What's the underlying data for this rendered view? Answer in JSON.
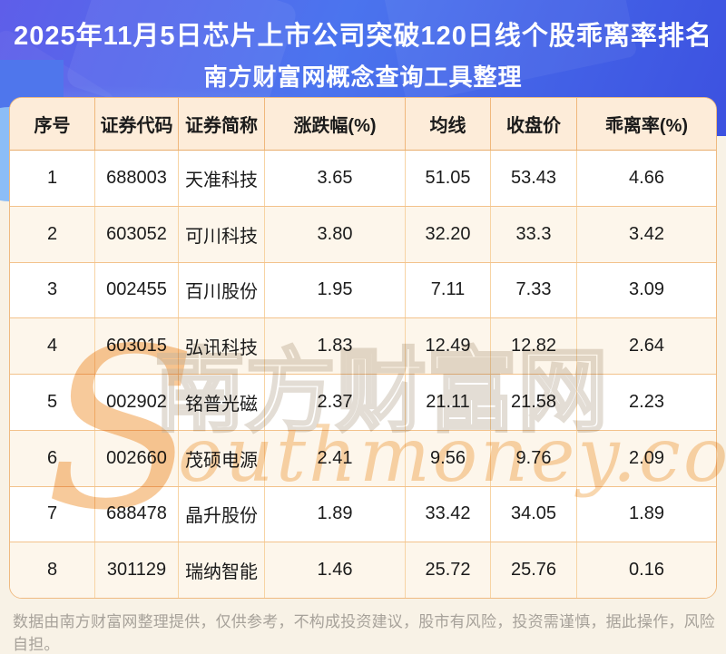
{
  "title": {
    "line1": "2025年11月5日芯片上市公司突破120日线个股乖离率排名",
    "line2": "南方财富网概念查询工具整理"
  },
  "table": {
    "headers": [
      "序号",
      "证券代码",
      "证券简称",
      "涨跌幅(%)",
      "均线",
      "收盘价",
      "乖离率(%)"
    ],
    "rows": [
      [
        "1",
        "688003",
        "天准科技",
        "3.65",
        "51.05",
        "53.43",
        "4.66"
      ],
      [
        "2",
        "603052",
        "可川科技",
        "3.80",
        "32.20",
        "33.3",
        "3.42"
      ],
      [
        "3",
        "002455",
        "百川股份",
        "1.95",
        "7.11",
        "7.33",
        "3.09"
      ],
      [
        "4",
        "603015",
        "弘讯科技",
        "1.83",
        "12.49",
        "12.82",
        "2.64"
      ],
      [
        "5",
        "002902",
        "铭普光磁",
        "2.37",
        "21.11",
        "21.58",
        "2.23"
      ],
      [
        "6",
        "002660",
        "茂硕电源",
        "2.41",
        "9.56",
        "9.76",
        "2.09"
      ],
      [
        "7",
        "688478",
        "晶升股份",
        "1.89",
        "33.42",
        "34.05",
        "1.89"
      ],
      [
        "8",
        "301129",
        "瑞纳智能",
        "1.46",
        "25.72",
        "25.76",
        "0.16"
      ]
    ]
  },
  "watermark": {
    "initial": "S",
    "site_name_cn": "南方财富网",
    "script_text": "outhmoney.com"
  },
  "footer": {
    "disclaimer": "数据由南方财富网整理提供，仅供参考，不构成投资建议，股市有风险，投资需谨慎，据此操作，风险自担。"
  },
  "colors": {
    "hero_gradient_start": "#5e5ee9",
    "hero_gradient_mid": "#4b74ee",
    "hero_gradient_end": "#3c51e0",
    "table_border": "#efba81",
    "header_bg": "#fdecd9",
    "row_bg_odd": "#ffffff",
    "row_bg_even": "#fdf6eb",
    "watermark_orange": "#f6bd82",
    "footer_text": "#a7a29a"
  },
  "chart_data": {
    "type": "table",
    "title": "2025年11月5日芯片上市公司突破120日线个股乖离率排名",
    "subtitle": "南方财富网概念查询工具整理",
    "columns": [
      "序号",
      "证券代码",
      "证券简称",
      "涨跌幅(%)",
      "均线",
      "收盘价",
      "乖离率(%)"
    ],
    "rows": [
      [
        1,
        "688003",
        "天准科技",
        3.65,
        51.05,
        53.43,
        4.66
      ],
      [
        2,
        "603052",
        "可川科技",
        3.8,
        32.2,
        33.3,
        3.42
      ],
      [
        3,
        "002455",
        "百川股份",
        1.95,
        7.11,
        7.33,
        3.09
      ],
      [
        4,
        "603015",
        "弘讯科技",
        1.83,
        12.49,
        12.82,
        2.64
      ],
      [
        5,
        "002902",
        "铭普光磁",
        2.37,
        21.11,
        21.58,
        2.23
      ],
      [
        6,
        "002660",
        "茂硕电源",
        2.41,
        9.56,
        9.76,
        2.09
      ],
      [
        7,
        "688478",
        "晶升股份",
        1.89,
        33.42,
        34.05,
        1.89
      ],
      [
        8,
        "301129",
        "瑞纳智能",
        1.46,
        25.72,
        25.76,
        0.16
      ]
    ]
  }
}
